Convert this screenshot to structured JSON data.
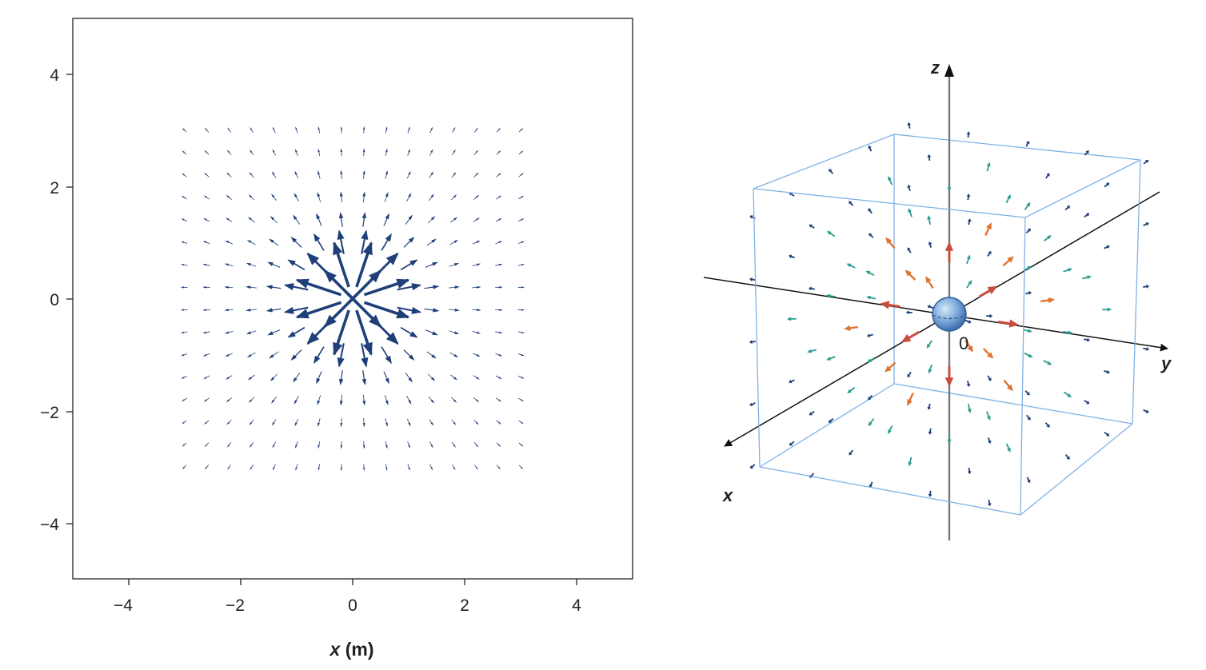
{
  "chart_data": [
    {
      "type": "vector-field-2d",
      "title": "",
      "xlabel_var": "x",
      "xlabel_unit": " (m)",
      "ylabel": "",
      "xlim": [
        -5,
        5
      ],
      "ylim": [
        -5,
        5
      ],
      "xticks": [
        -4,
        -2,
        0,
        2,
        4
      ],
      "yticks": [
        -4,
        -2,
        0,
        2,
        4
      ],
      "xtick_labels": [
        "−4",
        "−2",
        "0",
        "2",
        "4"
      ],
      "ytick_labels": [
        "−4",
        "−2",
        "0",
        "2",
        "4"
      ],
      "grid": false,
      "field": "radial outward, magnitude ∝ 1/r²",
      "sample_grid": {
        "x_from": -3,
        "x_to": 3,
        "y_from": -3,
        "y_to": 3,
        "count": 16
      },
      "arrow_color": "#1f3f78"
    },
    {
      "type": "vector-field-3d",
      "title": "",
      "axis_labels": {
        "x": "x",
        "y": "y",
        "z": "z"
      },
      "origin_label": "0",
      "field": "radial outward from a point charge at origin",
      "colors": {
        "box": "#7fb2e5",
        "near": "#c94c3c",
        "mid": "#e0722f",
        "far": "#2a9d8f",
        "farthest": "#1f3f78",
        "axis_z": "#777777",
        "axis_xy": "#111111",
        "sphere": "#6f9fd8"
      }
    }
  ]
}
